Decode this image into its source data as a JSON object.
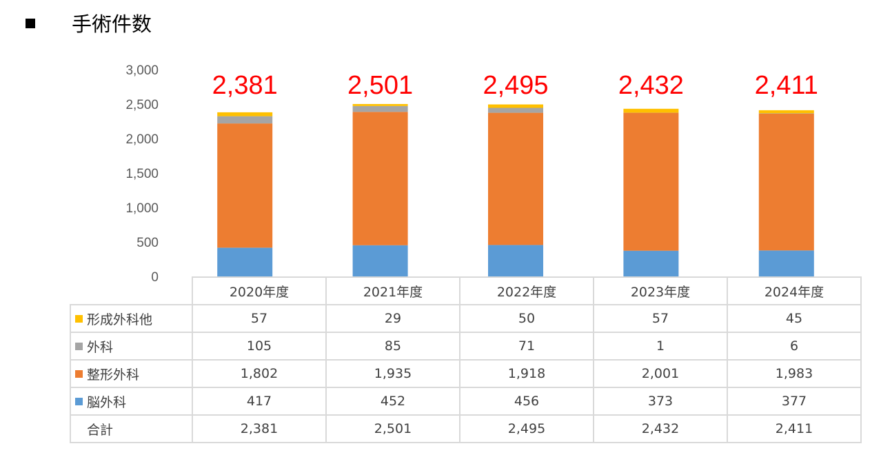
{
  "page_title": "手術件数",
  "chart_data": {
    "type": "bar",
    "stacked": true,
    "title": "手術件数",
    "categories": [
      "2020年度",
      "2021年度",
      "2022年度",
      "2023年度",
      "2024年度"
    ],
    "series": [
      {
        "name": "脳外科",
        "color": "#5b9bd5",
        "values": [
          417,
          452,
          456,
          373,
          377
        ],
        "labels": [
          "417",
          "452",
          "456",
          "373",
          "377"
        ]
      },
      {
        "name": "整形外科",
        "color": "#ed7d31",
        "values": [
          1802,
          1935,
          1918,
          2001,
          1983
        ],
        "labels": [
          "1,802",
          "1,935",
          "1,918",
          "2,001",
          "1,983"
        ]
      },
      {
        "name": "外科",
        "color": "#a5a5a5",
        "values": [
          105,
          85,
          71,
          1,
          6
        ],
        "labels": [
          "105",
          "85",
          "71",
          "1",
          "6"
        ]
      },
      {
        "name": "形成外科他",
        "color": "#ffc000",
        "values": [
          57,
          29,
          50,
          57,
          45
        ],
        "labels": [
          "57",
          "29",
          "50",
          "57",
          "45"
        ]
      }
    ],
    "totals": {
      "name": "合計",
      "values": [
        2381,
        2501,
        2495,
        2432,
        2411
      ],
      "labels": [
        "2,381",
        "2,501",
        "2,495",
        "2,432",
        "2,411"
      ],
      "color": "#ff0000"
    },
    "ylim": [
      0,
      3000
    ],
    "yticks": [
      0,
      500,
      1000,
      1500,
      2000,
      2500,
      3000
    ],
    "ytick_labels": [
      "0",
      "500",
      "1,000",
      "1,500",
      "2,000",
      "2,500",
      "3,000"
    ],
    "grid": false,
    "legend": "data-table"
  }
}
